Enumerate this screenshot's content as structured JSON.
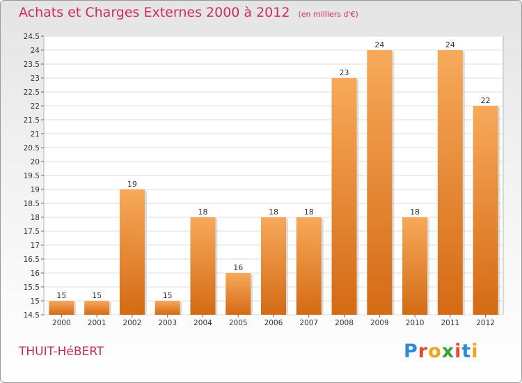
{
  "header": {
    "title": "Achats et Charges Externes 2000 à 2012",
    "unit": "(en milliers d'€)"
  },
  "footer": {
    "place": "THUIT-HéBERT",
    "brand_letters": [
      "P",
      "r",
      "o",
      "x",
      "i",
      "t",
      "i"
    ],
    "brand_colors": [
      "#2e8bd3",
      "#e8462e",
      "#f0a31c",
      "#3aa13a",
      "#e8462e",
      "#2e8bd3",
      "#f0a31c"
    ]
  },
  "colors": {
    "bar_light": "#f7a95a",
    "bar_dark": "#d46a14",
    "title": "#d02a5f"
  },
  "chart_data": {
    "type": "bar",
    "title": "Achats et Charges Externes 2000 à 2012",
    "categories": [
      "2000",
      "2001",
      "2002",
      "2003",
      "2004",
      "2005",
      "2006",
      "2007",
      "2008",
      "2009",
      "2010",
      "2011",
      "2012"
    ],
    "values": [
      15,
      15,
      19,
      15,
      18,
      16,
      18,
      18,
      23,
      24,
      18,
      24,
      22
    ],
    "value_labels": [
      "15",
      "15",
      "19",
      "15",
      "18",
      "16",
      "18",
      "18",
      "23",
      "24",
      "18",
      "24",
      "22"
    ],
    "ylim": [
      14.5,
      24.5
    ],
    "yticks": [
      "14.5",
      "15",
      "15.5",
      "16",
      "16.5",
      "17",
      "17.5",
      "18",
      "18.5",
      "19",
      "19.5",
      "20",
      "20.5",
      "21",
      "21.5",
      "22",
      "22.5",
      "23",
      "23.5",
      "24",
      "24.5"
    ],
    "grid": true
  }
}
